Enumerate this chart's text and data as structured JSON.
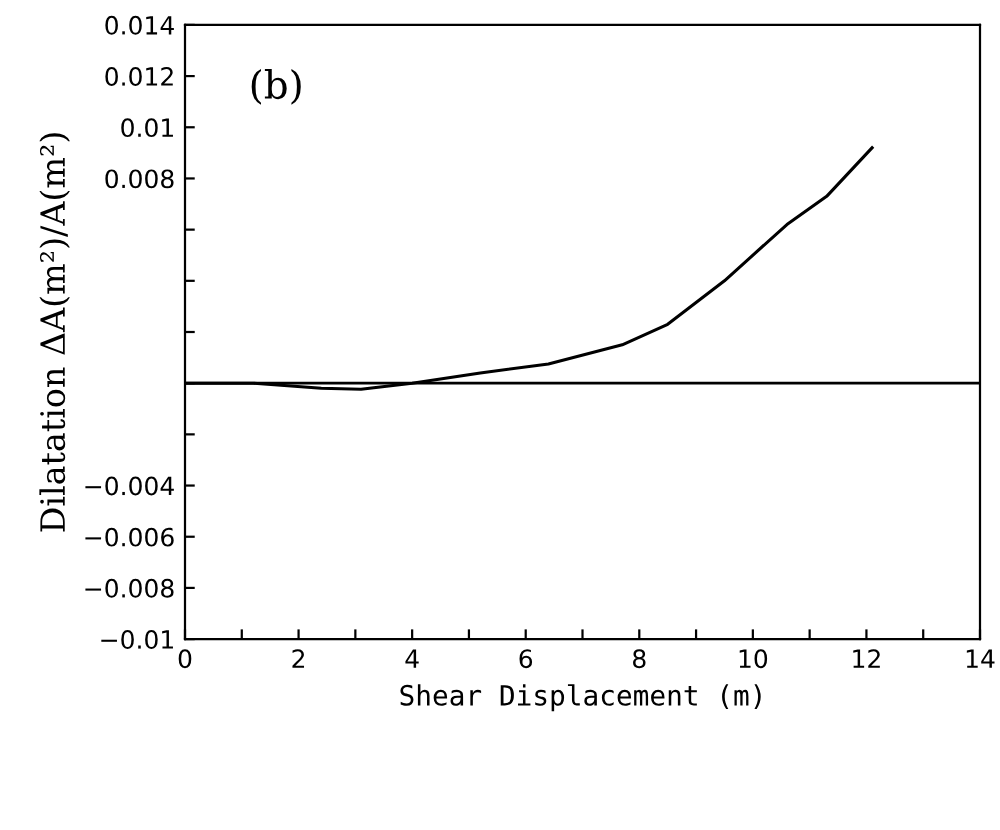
{
  "chart_data": {
    "type": "line",
    "xlabel": "Shear Displacement (m)",
    "ylabel": "Dilatation ΔA(m²)/A(m²)",
    "annotations": [
      "(b)"
    ],
    "series": [
      {
        "color": "#000000",
        "x": [
          0,
          1.2,
          2.4,
          3.1,
          4.0,
          5.2,
          6.4,
          7.7,
          8.5,
          9.5,
          10.6,
          11.3,
          12.1
        ],
        "values": [
          0,
          0,
          -0.0002,
          -0.00024,
          0,
          0.0004,
          0.00075,
          0.0015,
          0.0023,
          0.004,
          0.0062,
          0.0073,
          0.0092
        ]
      }
    ],
    "ref_lines": [
      {
        "axis": "y",
        "value": 0,
        "color": "#000000"
      }
    ],
    "xlim": [
      0,
      14
    ],
    "ylim": [
      -0.01,
      0.014
    ],
    "xticks": [
      0,
      {
        "value": 1,
        "label": null
      },
      2,
      {
        "value": 3,
        "label": null
      },
      4,
      {
        "value": 5,
        "label": null
      },
      6,
      {
        "value": 7,
        "label": null
      },
      8,
      {
        "value": 9,
        "label": null
      },
      10,
      {
        "value": 11,
        "label": null
      },
      12,
      {
        "value": 13,
        "label": null
      },
      14
    ],
    "yticks": [
      -0.01,
      -0.008,
      -0.006,
      -0.004,
      {
        "value": -0.002,
        "label": null
      },
      {
        "value": 0,
        "label": null
      },
      {
        "value": 0.002,
        "label": null
      },
      {
        "value": 0.004,
        "label": null
      },
      {
        "value": 0.006,
        "label": null
      },
      0.008,
      0.01,
      0.012,
      0.014
    ],
    "grid": false,
    "legend": false
  }
}
